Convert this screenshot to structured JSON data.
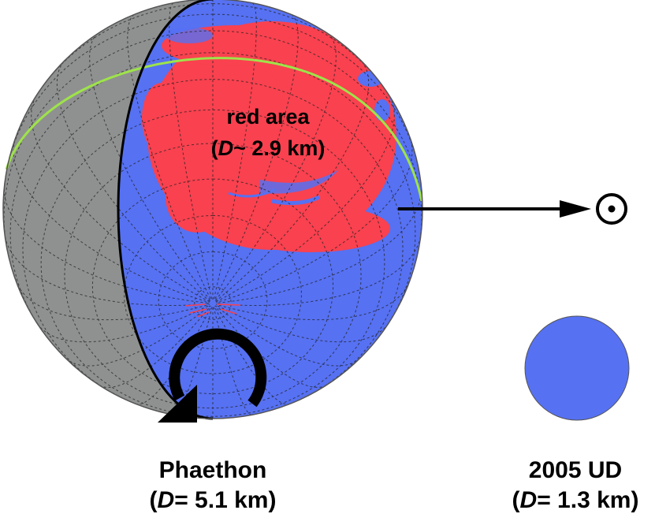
{
  "red_area": {
    "name": "red area",
    "diameter_prefix": "(",
    "diameter_symbol": "D",
    "diameter_value": "~ 2.9 km)"
  },
  "phaethon": {
    "name": "Phaethon",
    "diameter_prefix": "(",
    "diameter_symbol": "D",
    "diameter_value": "= 5.1 km)"
  },
  "ud2005": {
    "name": "2005 UD",
    "diameter_prefix": "(",
    "diameter_symbol": "D",
    "diameter_value": "= 1.3 km)"
  },
  "colors": {
    "surface_blue": "#5671f2",
    "red_region": "#f9414f",
    "night_side_gray": "#8f9191",
    "terminator_green": "#9ee34a"
  },
  "icons": [
    "sun-symbol-icon",
    "rotation-arrow-icon",
    "sun-direction-arrow-icon"
  ]
}
